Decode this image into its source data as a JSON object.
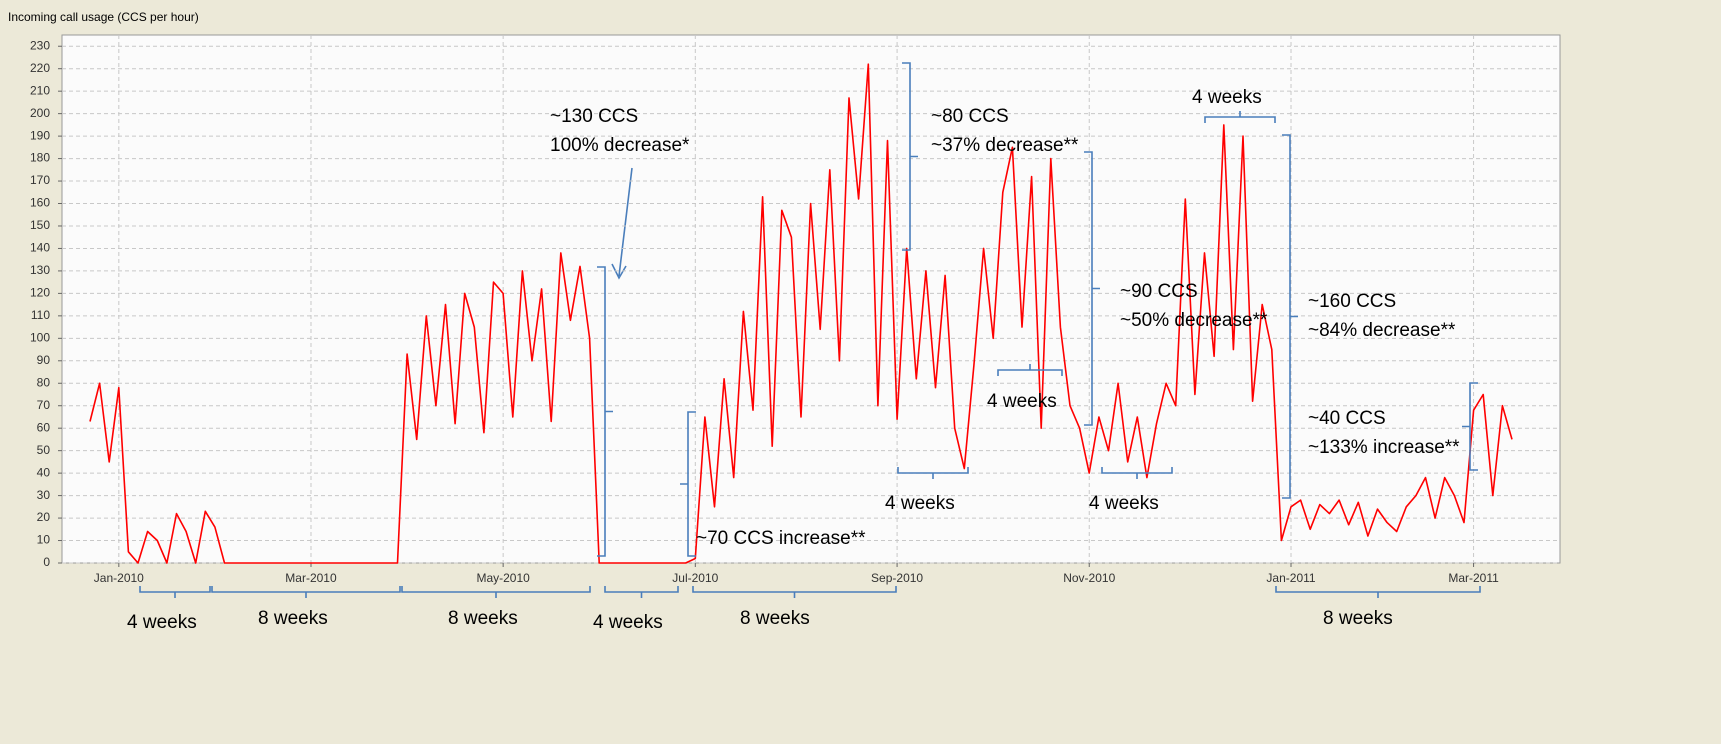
{
  "chart_data": {
    "type": "line",
    "title": "Incoming call usage (CCS per hour)",
    "categories": [
      null,
      null,
      null,
      "Jan-2010",
      null,
      null,
      null,
      null,
      null,
      null,
      null,
      null,
      null,
      null,
      null,
      null,
      null,
      null,
      null,
      null,
      null,
      null,
      null,
      "Mar-2010",
      null,
      null,
      null,
      null,
      null,
      null,
      null,
      null,
      null,
      null,
      null,
      null,
      null,
      null,
      null,
      null,
      null,
      null,
      null,
      "May-2010",
      null,
      null,
      null,
      null,
      null,
      null,
      null,
      null,
      null,
      null,
      null,
      null,
      null,
      null,
      null,
      null,
      null,
      null,
      null,
      "Jul-2010",
      null,
      null,
      null,
      null,
      null,
      null,
      null,
      null,
      null,
      null,
      null,
      null,
      null,
      null,
      null,
      null,
      null,
      null,
      null,
      null,
      "Sep-2010",
      null,
      null,
      null,
      null,
      null,
      null,
      null,
      null,
      null,
      null,
      null,
      null,
      null,
      null,
      null,
      null,
      null,
      null,
      null,
      "Nov-2010",
      null,
      null,
      null,
      null,
      null,
      null,
      null,
      null,
      null,
      null,
      null,
      null,
      null,
      null,
      null,
      null,
      null,
      null,
      null,
      null,
      "Jan-2011",
      null,
      null,
      null,
      null,
      null,
      null,
      null,
      null,
      null,
      null,
      null,
      null,
      null,
      null,
      null,
      null,
      null,
      null,
      "Mar-2011",
      null,
      null,
      null,
      null
    ],
    "series": [
      {
        "name": "Incoming call usage",
        "color": "#ff0000",
        "values": [
          63,
          80,
          45,
          78,
          5,
          0,
          14,
          10,
          0,
          22,
          14,
          0,
          23,
          16,
          0,
          0,
          0,
          0,
          0,
          0,
          0,
          0,
          0,
          0,
          0,
          0,
          0,
          0,
          0,
          0,
          0,
          0,
          0,
          93,
          55,
          110,
          70,
          115,
          62,
          120,
          105,
          58,
          125,
          120,
          65,
          130,
          90,
          122,
          63,
          138,
          108,
          132,
          100,
          0,
          0,
          0,
          0,
          0,
          0,
          0,
          0,
          0,
          0,
          2,
          65,
          25,
          82,
          38,
          112,
          68,
          163,
          52,
          157,
          145,
          65,
          160,
          104,
          175,
          90,
          207,
          162,
          222,
          70,
          188,
          64,
          140,
          82,
          130,
          78,
          128,
          60,
          42,
          88,
          140,
          100,
          165,
          185,
          105,
          172,
          60,
          180,
          105,
          70,
          60,
          40,
          65,
          50,
          80,
          45,
          65,
          38,
          62,
          80,
          70,
          162,
          75,
          138,
          92,
          195,
          95,
          190,
          72,
          115,
          95,
          10,
          25,
          28,
          15,
          26,
          22,
          28,
          17,
          27,
          12,
          24,
          18,
          14,
          25,
          30,
          38,
          20,
          38,
          30,
          18,
          68,
          75,
          30,
          70,
          55
        ]
      }
    ],
    "ylim": [
      0,
      235
    ],
    "yticks": [
      0,
      10,
      20,
      30,
      40,
      50,
      60,
      70,
      80,
      90,
      100,
      110,
      120,
      130,
      140,
      150,
      160,
      170,
      180,
      190,
      200,
      210,
      220,
      230
    ],
    "grid": true,
    "annotations": [
      "~130 CCS",
      "100% decrease*",
      "~80 CCS",
      "~37% decrease**",
      "4 weeks",
      "~90 CCS",
      "~50% decrease**",
      "~160 CCS",
      "~84% decrease**",
      "4 weeks",
      "~40 CCS",
      "~133% increase**",
      "4 weeks",
      "4 weeks",
      "~70 CCS increase**",
      "4 weeks",
      "8 weeks",
      "8 weeks",
      "4 weeks",
      "8 weeks",
      "8 weeks"
    ]
  }
}
